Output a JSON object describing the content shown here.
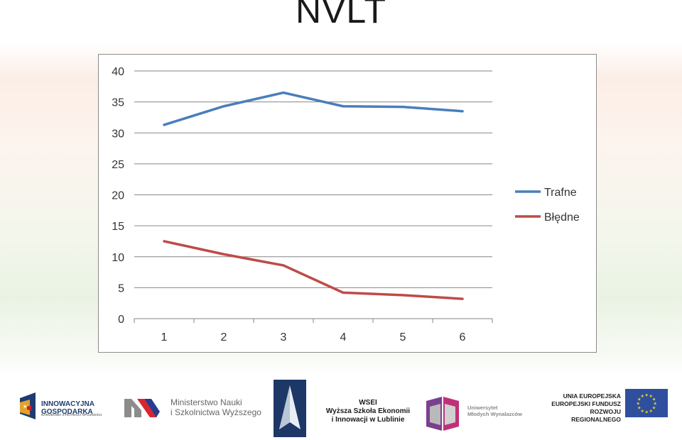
{
  "title": "NVLT",
  "chart_data": {
    "type": "line",
    "x": [
      1,
      2,
      3,
      4,
      5,
      6
    ],
    "categories": [
      "1",
      "2",
      "3",
      "4",
      "5",
      "6"
    ],
    "series": [
      {
        "name": "Trafne",
        "values": [
          31.3,
          34.3,
          36.5,
          34.3,
          34.2,
          33.5
        ],
        "color": "#4a7ebb"
      },
      {
        "name": "Błędne",
        "values": [
          12.5,
          10.4,
          8.6,
          4.2,
          3.8,
          3.2
        ],
        "color": "#be4b48"
      }
    ],
    "ylim": [
      0,
      40
    ],
    "yticks": [
      "0",
      "5",
      "10",
      "15",
      "20",
      "25",
      "30",
      "35",
      "40"
    ],
    "grid": true,
    "legend": "right"
  },
  "logos": {
    "innowacyjna": {
      "line1": "INNOWACYJNA",
      "line2": "GOSPODARKA",
      "line3": "NARODOWA STRATEGIA SPÓJNOŚCI"
    },
    "ministerstwo": {
      "line1": "Ministerstwo Nauki",
      "line2": "i Szkolnictwa Wyższego"
    },
    "wsei": {
      "line1": "WSEI",
      "line2": "Wyższa Szkoła Ekonomii",
      "line3": "i Innowacji w Lublinie"
    },
    "umw": {
      "line1": "Uniwersytet",
      "line2": "Młodych Wynalazców"
    },
    "ue": {
      "line1": "UNIA EUROPEJSKA",
      "line2": "EUROPEJSKI FUNDUSZ",
      "line3": "ROZWOJU REGIONALNEGO"
    }
  }
}
